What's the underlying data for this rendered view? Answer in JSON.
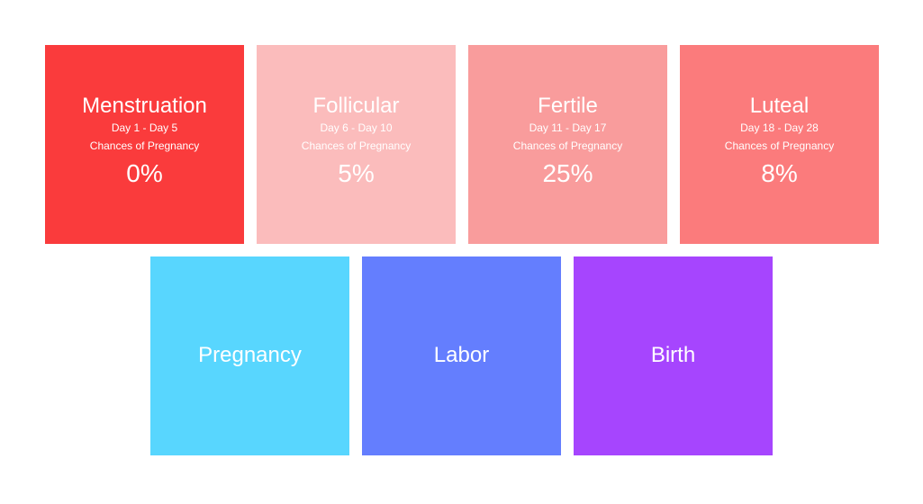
{
  "phases": [
    {
      "title": "Menstruation",
      "days": "Day 1 - Day 5",
      "chance_label": "Chances of Pregnancy",
      "chance": "0%",
      "color": "#fa3b3c"
    },
    {
      "title": "Follicular",
      "days": "Day 6 - Day 10",
      "chance_label": "Chances of Pregnancy",
      "chance": "5%",
      "color": "#fbbcbc"
    },
    {
      "title": "Fertile",
      "days": "Day 11 - Day 17",
      "chance_label": "Chances of Pregnancy",
      "chance": "25%",
      "color": "#f99c9c"
    },
    {
      "title": "Luteal",
      "days": "Day 18 - Day 28",
      "chance_label": "Chances of Pregnancy",
      "chance": "8%",
      "color": "#fb7b7c"
    }
  ],
  "stages": [
    {
      "title": "Pregnancy",
      "color": "#58d6fe"
    },
    {
      "title": "Labor",
      "color": "#647efe"
    },
    {
      "title": "Birth",
      "color": "#a645fe"
    }
  ]
}
